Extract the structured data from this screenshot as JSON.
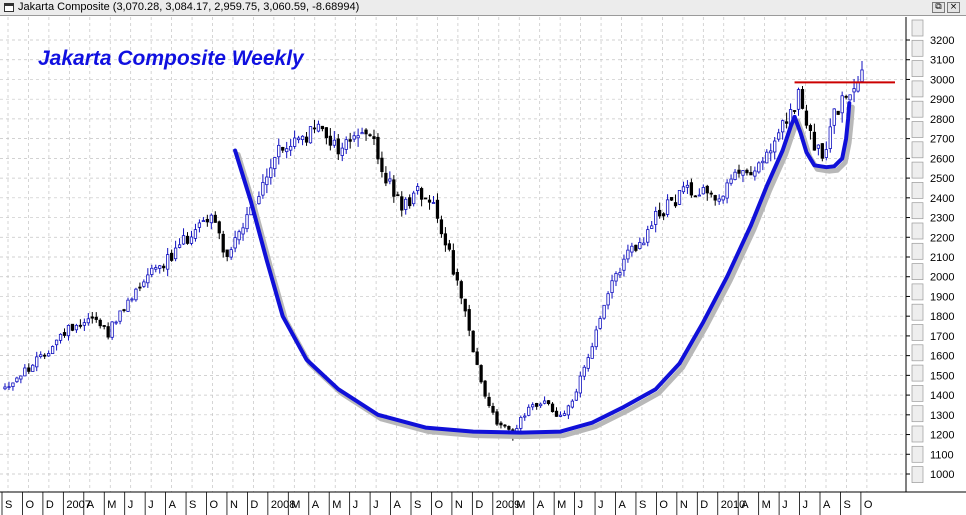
{
  "window": {
    "title": "Jakarta Composite",
    "ohlc": "(3,070.28, 3,084.17, 2,959.75, 3,060.59, -8.68994)",
    "restore_glyph": "⧉",
    "close_glyph": "×"
  },
  "chart_data": {
    "type": "candlestick",
    "title": "Jakarta Composite Weekly",
    "ylim": [
      900,
      3250
    ],
    "y_ticks": [
      "3200",
      "3100",
      "3000",
      "2900",
      "2800",
      "2700",
      "2600",
      "2500",
      "2400",
      "2300",
      "2200",
      "2100",
      "2000",
      "1900",
      "1800",
      "1700",
      "1600",
      "1500",
      "1400",
      "1300",
      "1200",
      "1100",
      "1000"
    ],
    "x_ticks": [
      "S",
      "O",
      "D",
      "2007",
      "A",
      "M",
      "J",
      "J",
      "A",
      "S",
      "O",
      "N",
      "D",
      "2008",
      "M",
      "A",
      "M",
      "J",
      "J",
      "A",
      "S",
      "O",
      "N",
      "D",
      "2009",
      "M",
      "A",
      "M",
      "J",
      "J",
      "A",
      "S",
      "O",
      "N",
      "D",
      "2010",
      "A",
      "M",
      "J",
      "J",
      "A",
      "S",
      "O"
    ],
    "grid": true,
    "resistance_level": 2985,
    "resistance_color": "#cc0000",
    "pattern_color": "#1010d8",
    "up_color": "#1010c0",
    "down_color": "#000000",
    "anchors": [
      [
        0,
        1440
      ],
      [
        8,
        1570
      ],
      [
        16,
        1740
      ],
      [
        22,
        1800
      ],
      [
        26,
        1720
      ],
      [
        30,
        1830
      ],
      [
        36,
        2030
      ],
      [
        42,
        2100
      ],
      [
        48,
        2250
      ],
      [
        52,
        2320
      ],
      [
        56,
        2100
      ],
      [
        60,
        2250
      ],
      [
        64,
        2400
      ],
      [
        68,
        2620
      ],
      [
        74,
        2690
      ],
      [
        80,
        2760
      ],
      [
        84,
        2640
      ],
      [
        88,
        2720
      ],
      [
        92,
        2720
      ],
      [
        96,
        2500
      ],
      [
        100,
        2350
      ],
      [
        104,
        2440
      ],
      [
        108,
        2380
      ],
      [
        112,
        2120
      ],
      [
        116,
        1800
      ],
      [
        120,
        1450
      ],
      [
        124,
        1260
      ],
      [
        128,
        1200
      ],
      [
        132,
        1350
      ],
      [
        136,
        1360
      ],
      [
        140,
        1290
      ],
      [
        144,
        1420
      ],
      [
        148,
        1650
      ],
      [
        152,
        1900
      ],
      [
        156,
        2100
      ],
      [
        160,
        2150
      ],
      [
        164,
        2300
      ],
      [
        168,
        2380
      ],
      [
        172,
        2440
      ],
      [
        176,
        2450
      ],
      [
        180,
        2400
      ],
      [
        184,
        2500
      ],
      [
        188,
        2550
      ],
      [
        192,
        2600
      ],
      [
        196,
        2750
      ],
      [
        200,
        2910
      ],
      [
        203,
        2700
      ],
      [
        206,
        2600
      ],
      [
        209,
        2820
      ],
      [
        212,
        2900
      ],
      [
        214,
        2970
      ],
      [
        216,
        3060
      ]
    ]
  }
}
